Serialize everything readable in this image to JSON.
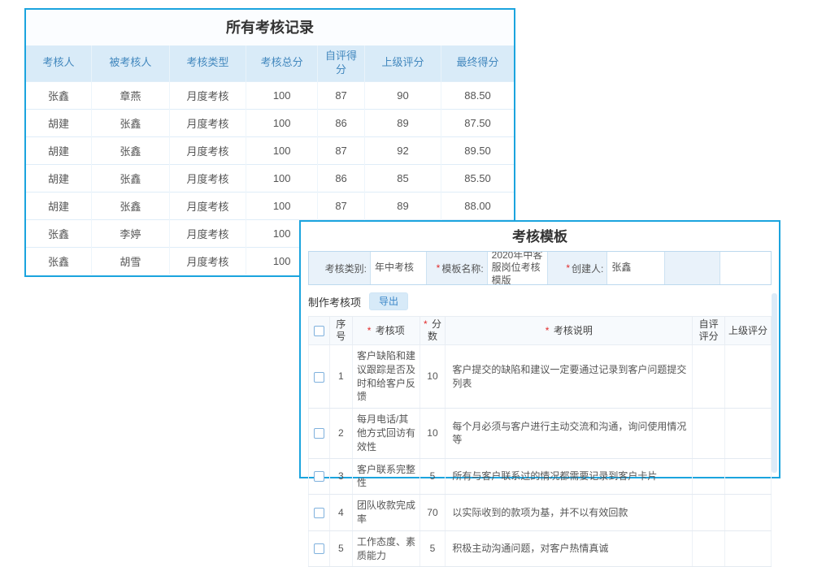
{
  "records_panel": {
    "title": "所有考核记录",
    "columns": [
      "考核人",
      "被考核人",
      "考核类型",
      "考核总分",
      "自评得分",
      "上级评分",
      "最终得分"
    ],
    "rows": [
      [
        "张鑫",
        "章燕",
        "月度考核",
        "100",
        "87",
        "90",
        "88.50"
      ],
      [
        "胡建",
        "张鑫",
        "月度考核",
        "100",
        "86",
        "89",
        "87.50"
      ],
      [
        "胡建",
        "张鑫",
        "月度考核",
        "100",
        "87",
        "92",
        "89.50"
      ],
      [
        "胡建",
        "张鑫",
        "月度考核",
        "100",
        "86",
        "85",
        "85.50"
      ],
      [
        "胡建",
        "张鑫",
        "月度考核",
        "100",
        "87",
        "89",
        "88.00"
      ],
      [
        "张鑫",
        "李婷",
        "月度考核",
        "100",
        "",
        "",
        ""
      ],
      [
        "张鑫",
        "胡雪",
        "月度考核",
        "100",
        "",
        "",
        ""
      ]
    ]
  },
  "template_panel": {
    "title": "考核模板",
    "required_mark": "*",
    "form": {
      "category_label": "考核类别:",
      "category_value": "年中考核",
      "name_label": "模板名称:",
      "name_value": "2020年中客服岗位考核模版",
      "creator_label": "创建人:",
      "creator_value": "张鑫"
    },
    "toolbar": {
      "make_items_label": "制作考核项",
      "export_button": "导出"
    },
    "items_table": {
      "col_no": "序号",
      "col_item": "考核项",
      "col_score": "分数",
      "col_desc": "考核说明",
      "col_self": "自评评分",
      "col_superior": "上级评分",
      "rows": [
        {
          "no": "1",
          "item": "客户缺陷和建议跟踪是否及时和给客户反馈",
          "score": "10",
          "desc": "客户提交的缺陷和建议一定要通过记录到客户问题提交列表",
          "self": "",
          "superior": ""
        },
        {
          "no": "2",
          "item": "每月电话/其他方式回访有效性",
          "score": "10",
          "desc": "每个月必须与客户进行主动交流和沟通，询问使用情况等",
          "self": "",
          "superior": ""
        },
        {
          "no": "3",
          "item": "客户联系完整性",
          "score": "5",
          "desc": "所有与客户联系过的情况都需要记录到客户卡片",
          "self": "",
          "superior": ""
        },
        {
          "no": "4",
          "item": "团队收款完成率",
          "score": "70",
          "desc": "以实际收到的款项为基，并不以有效回款",
          "self": "",
          "superior": ""
        },
        {
          "no": "5",
          "item": "工作态度、素质能力",
          "score": "5",
          "desc": "积极主动沟通问题，对客户热情真诚",
          "self": "",
          "superior": ""
        }
      ]
    }
  },
  "colors": {
    "panel_border": "#1ba4de",
    "records_header_bg": "#d9ebf8",
    "records_header_text": "#4388be",
    "form_bar_bg": "#e9f2fa",
    "export_button_bg": "#d7eaf8",
    "export_button_text": "#3a86c8",
    "required_asterisk": "#e22a2a"
  }
}
